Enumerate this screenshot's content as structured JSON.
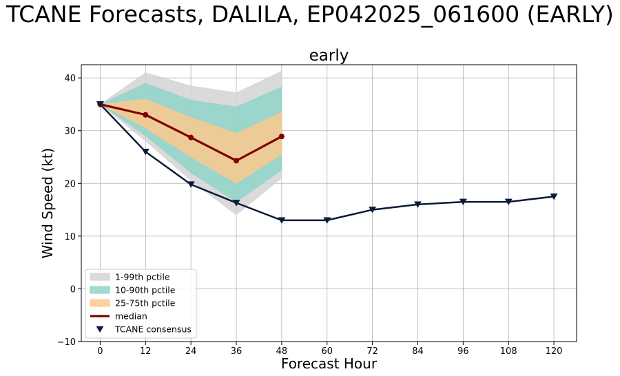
{
  "suptitle": "TCANE Forecasts, DALILA, EP042025_061600 (EARLY)",
  "chart_data": {
    "type": "line",
    "title": "early",
    "xlabel": "Forecast Hour",
    "ylabel": "Wind Speed (kt)",
    "xlim": [
      -5,
      126
    ],
    "ylim": [
      -10,
      42.5
    ],
    "xticks": [
      0,
      12,
      24,
      36,
      48,
      60,
      72,
      84,
      96,
      108,
      120
    ],
    "yticks": [
      -10,
      0,
      10,
      20,
      30,
      40
    ],
    "grid": true,
    "legend_position": "bottom-left",
    "bands": [
      {
        "name": "1-99th pctile",
        "color": "#d3d3d3",
        "x": [
          0,
          12,
          24,
          36,
          48
        ],
        "lower": [
          35,
          28,
          20.5,
          14,
          21
        ],
        "upper": [
          35,
          41,
          38.5,
          37.2,
          41.3
        ]
      },
      {
        "name": "10-90th pctile",
        "color": "#8fd3c9",
        "x": [
          0,
          12,
          24,
          36,
          48
        ],
        "lower": [
          35,
          29,
          22,
          16.5,
          22.5
        ],
        "upper": [
          35,
          39,
          35.8,
          34.5,
          38.3
        ]
      },
      {
        "name": "25-75th pctile",
        "color": "#fcc98d",
        "x": [
          0,
          12,
          24,
          36,
          48
        ],
        "lower": [
          35,
          30.5,
          25,
          20,
          25.5
        ],
        "upper": [
          35,
          36,
          32.5,
          29.5,
          33.5
        ]
      }
    ],
    "series": [
      {
        "name": "median",
        "color": "#800000",
        "marker": "circle",
        "x": [
          0,
          12,
          24,
          36,
          48
        ],
        "values": [
          35,
          33,
          28.7,
          24.3,
          28.9
        ]
      },
      {
        "name": "TCANE consensus",
        "color": "#0b1a3a",
        "marker": "triangle-down",
        "x": [
          0,
          12,
          24,
          36,
          48,
          60,
          72,
          84,
          96,
          108,
          120
        ],
        "values": [
          35,
          26,
          19.8,
          16.3,
          13,
          13,
          15,
          16,
          16.5,
          16.5,
          17.5
        ]
      }
    ]
  }
}
